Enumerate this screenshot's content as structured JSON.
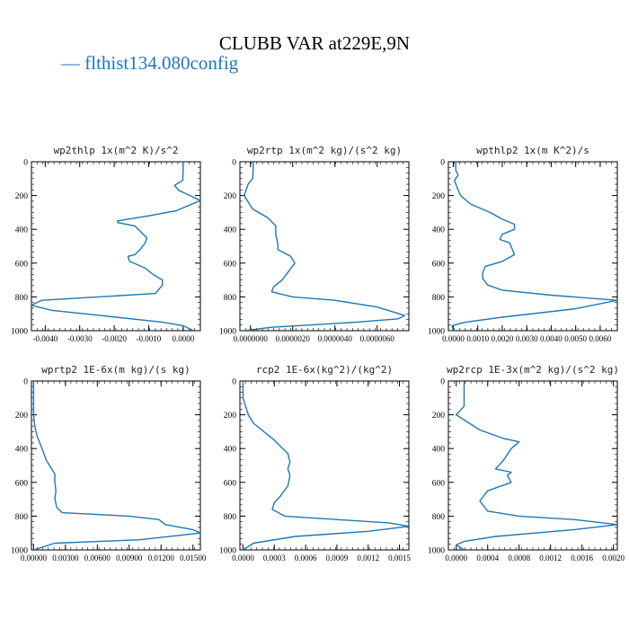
{
  "figure": {
    "title": "CLUBB VAR at229E,9N",
    "legend_label": "— flthist134.080config",
    "series_color": "#1f77b4"
  },
  "chart_data": [
    {
      "type": "line",
      "title": "wp2thlp  1x(m^2 K)/s^2",
      "xlim": [
        -0.0044,
        0.0005
      ],
      "xticks": [
        -0.004,
        -0.003,
        -0.002,
        -0.001,
        0.0
      ],
      "xtick_labels": [
        "-0.0040",
        "-0.0030",
        "-0.0020",
        "-0.0010",
        "0.0000"
      ],
      "ylim": [
        1000,
        0
      ],
      "yticks": [
        0,
        200,
        400,
        600,
        800,
        1000
      ],
      "ytick_labels": [
        "0",
        "200",
        "400",
        "600",
        "800",
        "1000"
      ],
      "x": [
        0.0,
        0.0,
        -1e-05,
        -0.00025,
        -0.00012,
        0.0002,
        0.0005,
        -0.0002,
        -0.001,
        -0.0019,
        -0.0019,
        -0.0014,
        -0.00105,
        -0.0011,
        -0.00125,
        -0.0014,
        -0.0016,
        -0.00155,
        -0.0011,
        -0.00085,
        -0.0006,
        -0.0006,
        -0.0008,
        -0.0041,
        -0.0043,
        -0.0044,
        -0.0038,
        -0.0024,
        -0.0006,
        0.0,
        0.0003
      ],
      "y": [
        0,
        50,
        110,
        140,
        170,
        200,
        230,
        290,
        320,
        350,
        360,
        380,
        450,
        480,
        520,
        550,
        560,
        590,
        630,
        670,
        700,
        730,
        780,
        820,
        840,
        850,
        880,
        910,
        950,
        970,
        1000
      ]
    },
    {
      "type": "line",
      "title": "wp2rtp  1x(m^2 kg)/(s^2 kg)",
      "xlim": [
        -5e-07,
        7.5e-06
      ],
      "xticks": [
        0.0,
        2e-06,
        4e-06,
        6e-06
      ],
      "xtick_labels": [
        "0.0000000",
        "0.0000020",
        "0.0000040",
        "0.0000060"
      ],
      "ylim": [
        1000,
        0
      ],
      "yticks": [
        0,
        200,
        400,
        600,
        800,
        1000
      ],
      "ytick_labels": [
        "0",
        "200",
        "400",
        "600",
        "800",
        "1000"
      ],
      "x": [
        1.3e-07,
        1.3e-07,
        1e-07,
        -1e-07,
        -3e-07,
        1e-07,
        8e-07,
        1.2e-06,
        1.2e-06,
        1.3e-06,
        1.3e-06,
        1.9e-06,
        2.1e-06,
        1.8e-06,
        1.5e-06,
        1.1e-06,
        1e-06,
        2e-06,
        4e-06,
        6e-06,
        7.3e-06,
        7e-06,
        5e-06,
        3e-06,
        1e-06,
        -3e-07
      ],
      "y": [
        0,
        50,
        100,
        130,
        200,
        280,
        330,
        380,
        430,
        490,
        520,
        560,
        600,
        650,
        700,
        740,
        770,
        800,
        820,
        860,
        910,
        930,
        950,
        965,
        980,
        1000
      ]
    },
    {
      "type": "line",
      "title": "wpthlp2  1x(m K^2)/s",
      "xlim": [
        -0.0002,
        0.0067
      ],
      "xticks": [
        0.0,
        0.001,
        0.002,
        0.003,
        0.004,
        0.005,
        0.006
      ],
      "xtick_labels": [
        "0.0000",
        "0.0010",
        "0.0020",
        "0.0030",
        "0.0040",
        "0.0050",
        "0.0060"
      ],
      "ylim": [
        1000,
        0
      ],
      "yticks": [
        0,
        200,
        400,
        600,
        800,
        1000
      ],
      "ytick_labels": [
        "0",
        "200",
        "400",
        "600",
        "800",
        "1000"
      ],
      "x": [
        0.0001,
        0.0001,
        0.0002,
        5e-05,
        0.00015,
        0.0003,
        0.0007,
        0.0015,
        0.002,
        0.0025,
        0.0025,
        0.002,
        0.0019,
        0.0023,
        0.0025,
        0.002,
        0.0013,
        0.0012,
        0.0012,
        0.0014,
        0.002,
        0.004,
        0.0067,
        0.005,
        0.002,
        0.0005,
        -5e-05,
        0.0
      ],
      "y": [
        0,
        50,
        80,
        110,
        150,
        200,
        250,
        300,
        340,
        370,
        400,
        430,
        460,
        480,
        550,
        590,
        620,
        660,
        690,
        730,
        760,
        790,
        820,
        870,
        920,
        950,
        970,
        1000
      ]
    },
    {
      "type": "line",
      "title": "wprtp2  1E-6x(m kg)/(s kg)",
      "xlim": [
        -0.0002,
        0.0157
      ],
      "xticks": [
        0.0,
        0.003,
        0.006,
        0.009,
        0.012,
        0.015
      ],
      "xtick_labels": [
        "0.00000",
        "0.00300",
        "0.00600",
        "0.00900",
        "0.01200",
        "0.01500"
      ],
      "ylim": [
        1000,
        0
      ],
      "yticks": [
        0,
        200,
        400,
        600,
        800,
        1000
      ],
      "ytick_labels": [
        "0",
        "200",
        "400",
        "600",
        "800",
        "1000"
      ],
      "x": [
        0.0,
        0.0,
        0.0,
        0.0001,
        0.0003,
        0.0008,
        0.0012,
        0.0017,
        0.002,
        0.002,
        0.0021,
        0.002,
        0.0022,
        0.0027,
        0.009,
        0.0118,
        0.0124,
        0.015,
        0.0157,
        0.01,
        0.002,
        0.0
      ],
      "y": [
        0,
        100,
        200,
        260,
        320,
        400,
        470,
        520,
        550,
        600,
        650,
        700,
        750,
        780,
        800,
        820,
        850,
        880,
        900,
        940,
        960,
        1000
      ]
    },
    {
      "type": "line",
      "title": "rcp2  1E-6x(kg^2)/(kg^2)",
      "xlim": [
        -3e-05,
        0.00159
      ],
      "xticks": [
        0.0,
        0.0003,
        0.0006,
        0.0009,
        0.0012,
        0.0015
      ],
      "xtick_labels": [
        "0.0000",
        "0.0003",
        "0.0006",
        "0.0009",
        "0.0012",
        "0.0015"
      ],
      "ylim": [
        1000,
        0
      ],
      "yticks": [
        0,
        200,
        400,
        600,
        800,
        1000
      ],
      "ytick_labels": [
        "0",
        "200",
        "400",
        "600",
        "800",
        "1000"
      ],
      "x": [
        0.0,
        0.0,
        5e-05,
        0.0001,
        0.0002,
        0.0003,
        0.00038,
        0.00043,
        0.00045,
        0.00043,
        0.00045,
        0.00043,
        0.00036,
        0.0003,
        0.00028,
        0.0004,
        0.0009,
        0.0014,
        0.00159,
        0.0012,
        0.0005,
        0.0001,
        0.0
      ],
      "y": [
        0,
        100,
        200,
        250,
        300,
        350,
        400,
        430,
        480,
        520,
        560,
        620,
        680,
        720,
        760,
        800,
        820,
        840,
        860,
        890,
        920,
        960,
        1000
      ]
    },
    {
      "type": "line",
      "title": "wp2rcp  1E-3x(m^2 kg)/(s^2 kg)",
      "xlim": [
        -0.0001,
        0.00205
      ],
      "xticks": [
        0.0,
        0.0004,
        0.0008,
        0.0012,
        0.0016,
        0.002
      ],
      "xtick_labels": [
        "0.0000",
        "0.0004",
        "0.0008",
        "0.0012",
        "0.0016",
        "0.0020"
      ],
      "ylim": [
        1000,
        0
      ],
      "yticks": [
        0,
        200,
        400,
        600,
        800,
        1000
      ],
      "ytick_labels": [
        "0",
        "200",
        "400",
        "600",
        "800",
        "1000"
      ],
      "x": [
        0.0001,
        0.0001,
        0.0001,
        0.0,
        0.0003,
        0.0006,
        0.0008,
        0.0007,
        0.0006,
        0.0005,
        0.0007,
        0.00065,
        0.0007,
        0.0004,
        0.0003,
        0.0004,
        0.0008,
        0.0015,
        0.00205,
        0.0015,
        0.0005,
        0.0001,
        0.0,
        0.0001
      ],
      "y": [
        0,
        50,
        150,
        200,
        290,
        340,
        360,
        400,
        470,
        520,
        540,
        560,
        600,
        650,
        710,
        770,
        800,
        820,
        850,
        880,
        920,
        950,
        970,
        1000
      ]
    }
  ]
}
